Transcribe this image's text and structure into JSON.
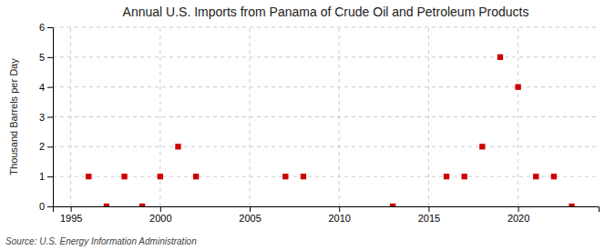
{
  "chart_data": {
    "type": "scatter",
    "title": "Annual U.S. Imports from Panama of Crude Oil and Petroleum Products",
    "y_label": "Thousand Barrels per Day",
    "source": "Source: U.S. Energy Information Administration",
    "x": [
      1996,
      1997,
      1998,
      1999,
      2000,
      2001,
      2002,
      2007,
      2008,
      2013,
      2016,
      2017,
      2018,
      2019,
      2020,
      2021,
      2022,
      2023
    ],
    "values": [
      1,
      0,
      1,
      0,
      1,
      2,
      1,
      1,
      1,
      0,
      1,
      1,
      2,
      5,
      4,
      1,
      1,
      0
    ],
    "color": "#cc0000",
    "marker": "square",
    "xlim": [
      1994.0,
      2024.5
    ],
    "ylim": [
      0,
      6
    ],
    "xticks": [
      1995,
      2000,
      2005,
      2010,
      2015,
      2020
    ],
    "yticks": [
      0,
      1,
      2,
      3,
      4,
      5,
      6
    ],
    "grid": true
  }
}
